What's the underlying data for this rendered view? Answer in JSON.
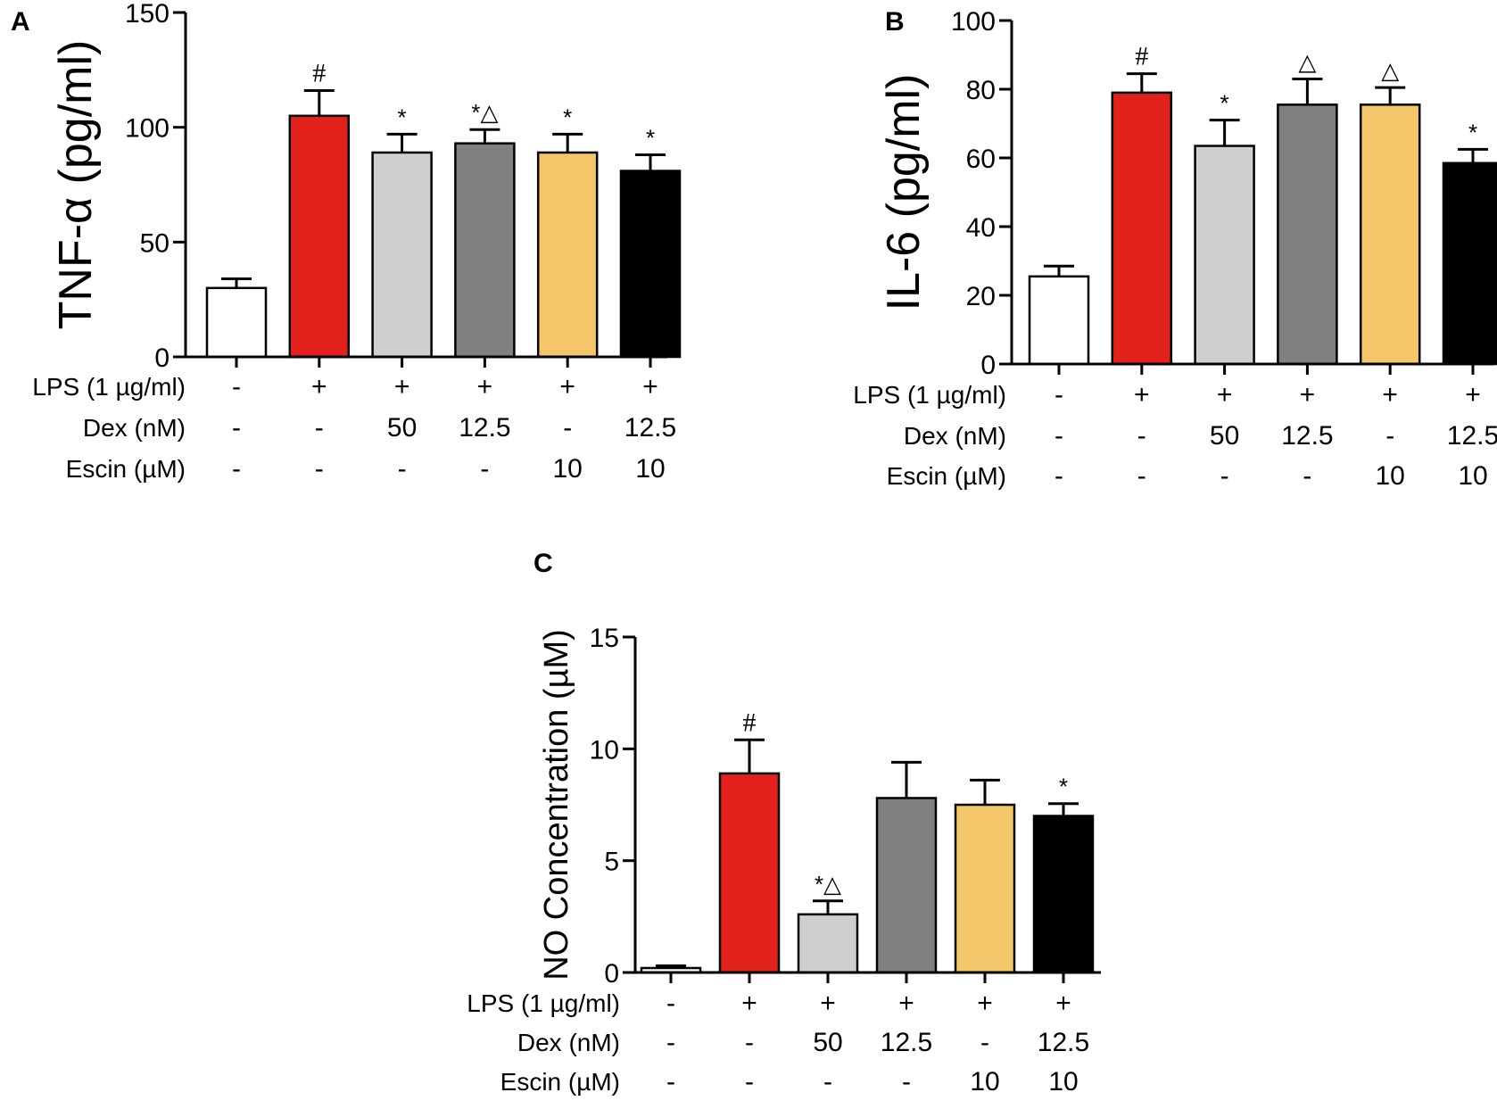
{
  "colors": {
    "bars": [
      "#ffffff",
      "#e3211c",
      "#cfcfcf",
      "#808080",
      "#f3c66a",
      "#000000"
    ],
    "outline": "#000000"
  },
  "chart_data": [
    {
      "id": "A",
      "type": "bar",
      "panel_label": "A",
      "ylabel": "TNF-α (pg/ml)",
      "ylim": [
        0,
        150
      ],
      "yticks": [
        0,
        50,
        100,
        150
      ],
      "ytick_labels": [
        "0",
        "50",
        "100",
        "150"
      ],
      "values": [
        30,
        105,
        89,
        93,
        89,
        81
      ],
      "errors": [
        4,
        11,
        8,
        6,
        8,
        7
      ],
      "significance": [
        "",
        "#",
        "*",
        "*△",
        "*",
        "*"
      ],
      "conditions": [
        {
          "label": "LPS (1 µg/ml)",
          "values": [
            "-",
            "+",
            "+",
            "+",
            "+",
            "+"
          ]
        },
        {
          "label": "Dex (nM)",
          "values": [
            "-",
            "-",
            "50",
            "12.5",
            "-",
            "12.5"
          ]
        },
        {
          "label": "Escin (µM)",
          "values": [
            "-",
            "-",
            "-",
            "-",
            "10",
            "10"
          ]
        }
      ]
    },
    {
      "id": "B",
      "type": "bar",
      "panel_label": "B",
      "ylabel": "IL-6 (pg/ml)",
      "ylim": [
        0,
        100
      ],
      "yticks": [
        0,
        20,
        40,
        60,
        80,
        100
      ],
      "ytick_labels": [
        "0",
        "20",
        "40",
        "60",
        "80",
        "100"
      ],
      "values": [
        25.5,
        79,
        63.5,
        75.5,
        75.5,
        58.5
      ],
      "errors": [
        3,
        5.5,
        7.5,
        7.5,
        5,
        4
      ],
      "significance": [
        "",
        "#",
        "*",
        "△",
        "△",
        "*"
      ],
      "conditions": [
        {
          "label": "LPS (1 µg/ml)",
          "values": [
            "-",
            "+",
            "+",
            "+",
            "+",
            "+"
          ]
        },
        {
          "label": "Dex (nM)",
          "values": [
            "-",
            "-",
            "50",
            "12.5",
            "-",
            "12.5"
          ]
        },
        {
          "label": "Escin (µM)",
          "values": [
            "-",
            "-",
            "-",
            "-",
            "10",
            "10"
          ]
        }
      ]
    },
    {
      "id": "C",
      "type": "bar",
      "panel_label": "C",
      "ylabel": "NO Concentration (µM)",
      "ylim": [
        0,
        15
      ],
      "yticks": [
        0,
        5,
        10,
        15
      ],
      "ytick_labels": [
        "0",
        "5",
        "10",
        "15"
      ],
      "values": [
        0.2,
        8.9,
        2.6,
        7.8,
        7.5,
        7.0
      ],
      "errors": [
        0.1,
        1.5,
        0.6,
        1.6,
        1.1,
        0.55
      ],
      "significance": [
        "",
        "#",
        "*△",
        "",
        "",
        "*"
      ],
      "conditions": [
        {
          "label": "LPS (1 µg/ml)",
          "values": [
            "-",
            "+",
            "+",
            "+",
            "+",
            "+"
          ]
        },
        {
          "label": "Dex (nM)",
          "values": [
            "-",
            "-",
            "50",
            "12.5",
            "-",
            "12.5"
          ]
        },
        {
          "label": "Escin (µM)",
          "values": [
            "-",
            "-",
            "-",
            "-",
            "10",
            "10"
          ]
        }
      ]
    }
  ]
}
